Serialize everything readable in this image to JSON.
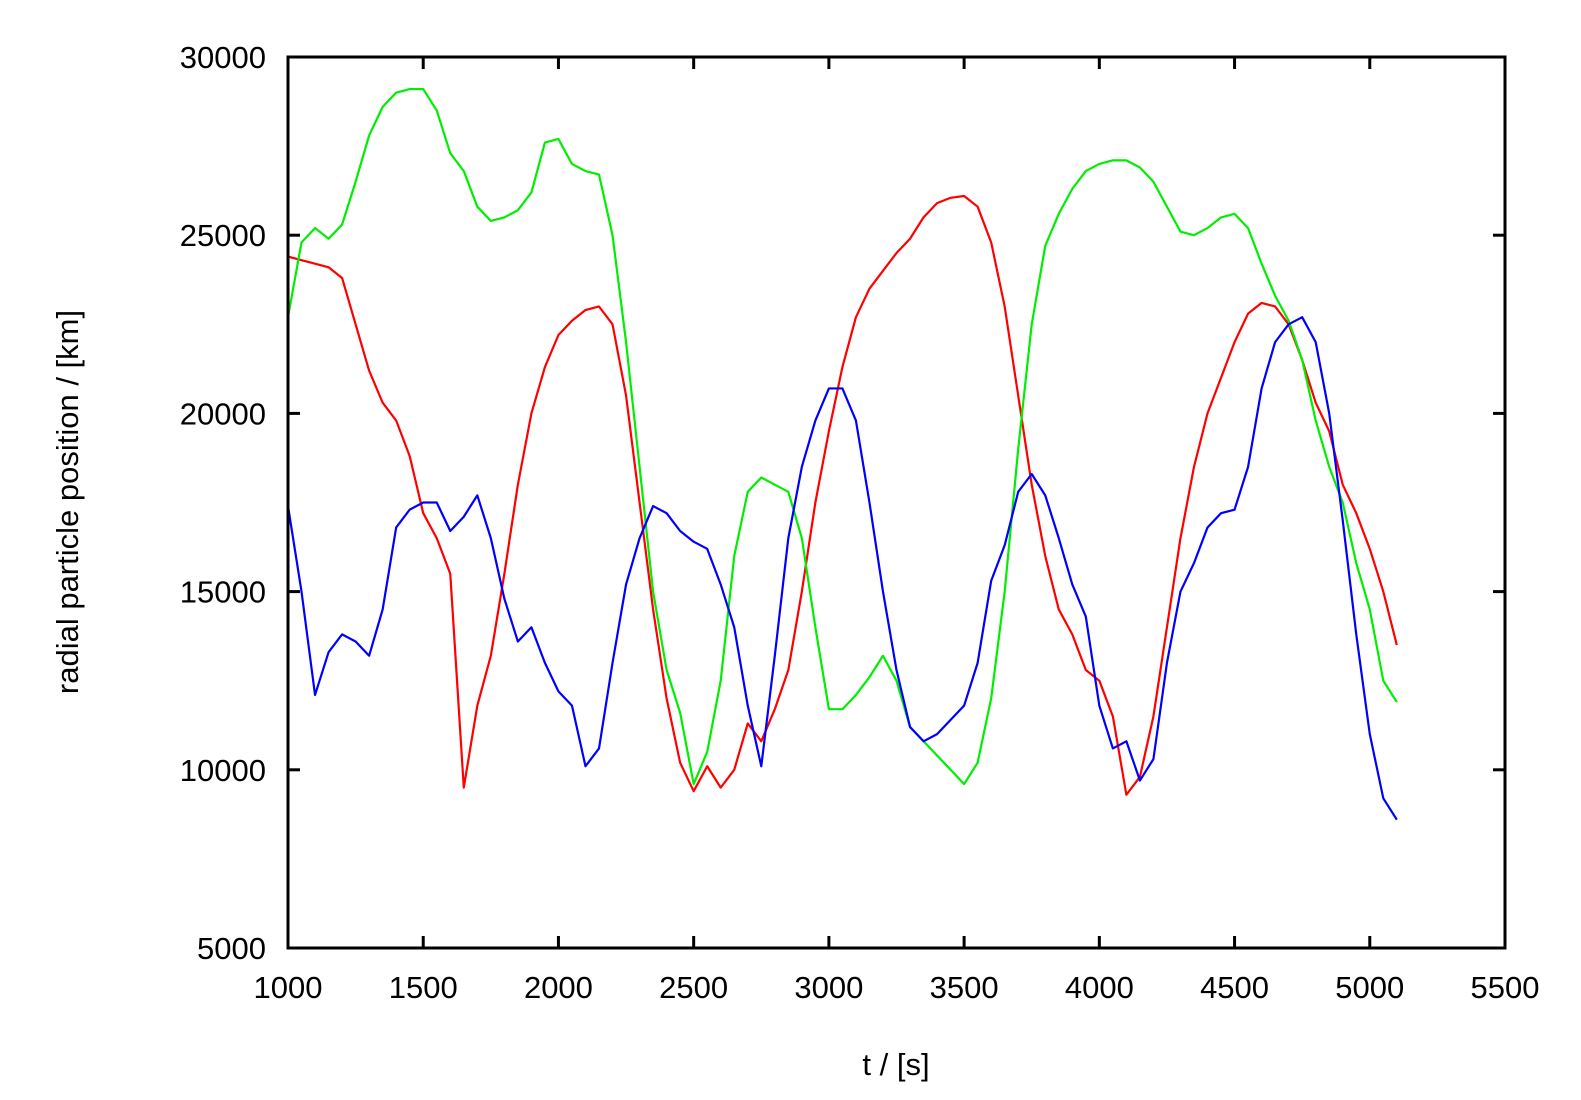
{
  "chart_data": {
    "type": "line",
    "xlabel": "t / [s]",
    "ylabel": "radial particle position / [km]",
    "x": [
      1000,
      1050,
      1100,
      1150,
      1200,
      1250,
      1300,
      1350,
      1400,
      1450,
      1500,
      1550,
      1600,
      1650,
      1700,
      1750,
      1800,
      1850,
      1900,
      1950,
      2000,
      2050,
      2100,
      2150,
      2200,
      2250,
      2300,
      2350,
      2400,
      2450,
      2500,
      2550,
      2600,
      2650,
      2700,
      2750,
      2800,
      2850,
      2900,
      2950,
      3000,
      3050,
      3100,
      3150,
      3200,
      3250,
      3300,
      3350,
      3400,
      3450,
      3500,
      3550,
      3600,
      3650,
      3700,
      3750,
      3800,
      3850,
      3900,
      3950,
      4000,
      4050,
      4100,
      4150,
      4200,
      4250,
      4300,
      4350,
      4400,
      4450,
      4500,
      4550,
      4600,
      4650,
      4700,
      4750,
      4800,
      4850,
      4900,
      4950,
      5000,
      5050,
      5100
    ],
    "series": [
      {
        "color": "#ff0000",
        "values": [
          24400,
          24300,
          24200,
          24100,
          23800,
          22500,
          21200,
          20300,
          19800,
          18800,
          17200,
          16500,
          15500,
          9500,
          11800,
          13200,
          15500,
          18000,
          20000,
          21300,
          22200,
          22600,
          22900,
          23000,
          22500,
          20500,
          17500,
          14500,
          12000,
          10200,
          9400,
          10100,
          9500,
          10000,
          11300,
          10800,
          11700,
          12800,
          15000,
          17500,
          19500,
          21300,
          22700,
          23500,
          24000,
          24500,
          24900,
          25500,
          25900,
          26050,
          26100,
          25800,
          24800,
          23000,
          20500,
          18000,
          16000,
          14500,
          13800,
          12800,
          12500,
          11500,
          9300,
          9800,
          11500,
          14000,
          16500,
          18500,
          20000,
          21000,
          22000,
          22800,
          23100,
          23000,
          22500,
          21500,
          20300,
          19500,
          18000,
          17200,
          16200,
          15000,
          13500
        ]
      },
      {
        "color": "#00ee00",
        "values": [
          22700,
          24800,
          25200,
          24900,
          25300,
          26500,
          27800,
          28600,
          29000,
          29100,
          29100,
          28500,
          27300,
          26800,
          25800,
          25400,
          25500,
          25700,
          26200,
          27600,
          27700,
          27000,
          26800,
          26700,
          25000,
          22000,
          18500,
          15000,
          12800,
          11600,
          9600,
          10500,
          12500,
          16000,
          17800,
          18200,
          18000,
          17800,
          16500,
          14000,
          11700,
          11700,
          12100,
          12600,
          13200,
          12500,
          11200,
          10800,
          10400,
          10000,
          9600,
          10200,
          12000,
          15000,
          19000,
          22500,
          24700,
          25600,
          26300,
          26800,
          27000,
          27100,
          27100,
          26900,
          26500,
          25800,
          25100,
          25000,
          25200,
          25500,
          25600,
          25200,
          24200,
          23300,
          22600,
          21500,
          19800,
          18500,
          17500,
          15800,
          14500,
          12500,
          11900
        ]
      },
      {
        "color": "#0000ff",
        "values": [
          17400,
          15000,
          12100,
          13300,
          13800,
          13600,
          13200,
          14500,
          16800,
          17300,
          17500,
          17500,
          16700,
          17100,
          17700,
          16500,
          14800,
          13600,
          14000,
          13000,
          12200,
          11800,
          10100,
          10600,
          13000,
          15200,
          16500,
          17400,
          17200,
          16700,
          16400,
          16200,
          15200,
          14000,
          11800,
          10100,
          13200,
          16500,
          18500,
          19800,
          20700,
          20700,
          19800,
          17500,
          15000,
          12800,
          11200,
          10800,
          11000,
          11400,
          11800,
          13000,
          15300,
          16300,
          17800,
          18300,
          17700,
          16500,
          15200,
          14300,
          11800,
          10600,
          10800,
          9700,
          10300,
          13000,
          15000,
          15800,
          16800,
          17200,
          17300,
          18500,
          20700,
          22000,
          22500,
          22700,
          22000,
          20000,
          17000,
          13800,
          11000,
          9200,
          8600
        ]
      }
    ],
    "xlim": [
      1000,
      5500
    ],
    "xticks": [
      1000,
      1500,
      2000,
      2500,
      3000,
      3500,
      4000,
      4500,
      5000,
      5500
    ],
    "ylim": [
      5000,
      30000
    ],
    "yticks": [
      5000,
      10000,
      15000,
      20000,
      25000,
      30000
    ],
    "grid": false
  }
}
